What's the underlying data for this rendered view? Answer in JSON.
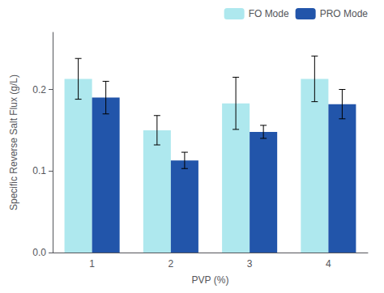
{
  "chart_data": {
    "type": "bar",
    "categories": [
      "1",
      "2",
      "3",
      "4"
    ],
    "series": [
      {
        "name": "FO Mode",
        "color": "#aee8ee",
        "values": [
          0.213,
          0.15,
          0.183,
          0.213
        ],
        "errors": [
          0.025,
          0.018,
          0.032,
          0.028
        ]
      },
      {
        "name": "PRO Mode",
        "color": "#2255aa",
        "values": [
          0.19,
          0.113,
          0.148,
          0.182
        ],
        "errors": [
          0.02,
          0.01,
          0.008,
          0.018
        ]
      }
    ],
    "xlabel": "PVP (%)",
    "ylabel": "Specific Reverse Salt Flux (g/L)",
    "ylim": [
      0.0,
      0.27
    ],
    "yticks": [
      {
        "value": 0.0,
        "label": "0.0"
      },
      0.1,
      0.2
    ],
    "grid": false,
    "legend": "upper right"
  }
}
